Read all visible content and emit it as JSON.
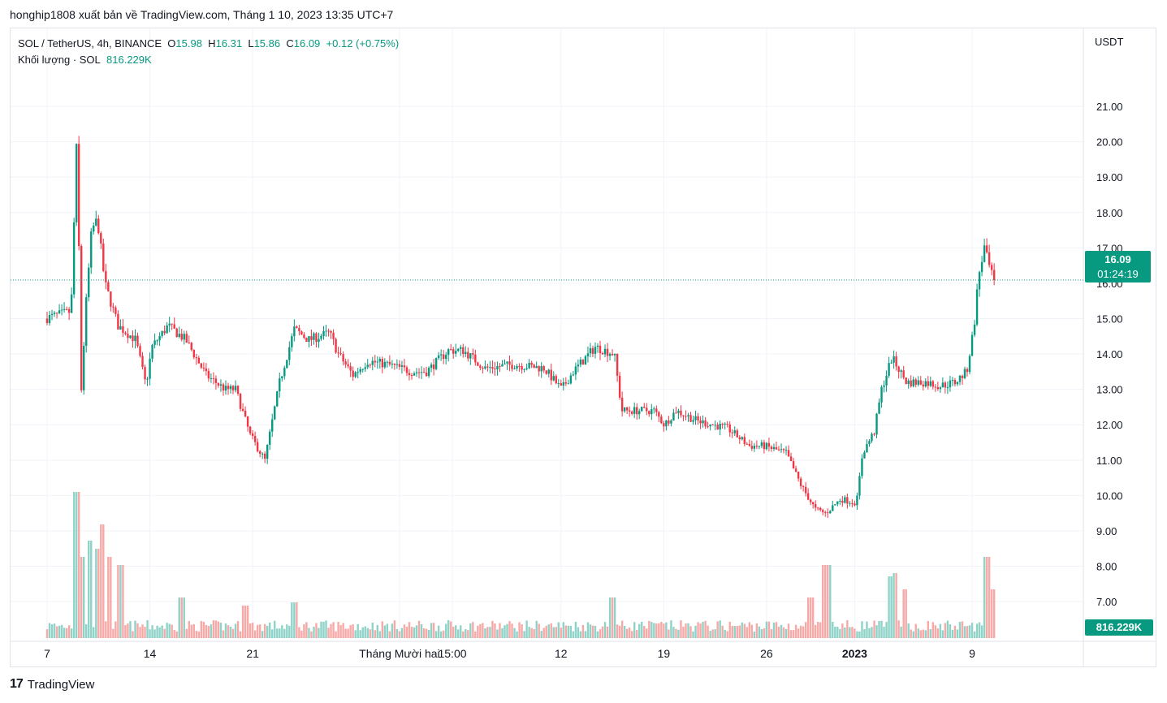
{
  "header": {
    "text": "honghip1808 xuất bản về TradingView.com, Tháng 1 10, 2023 13:35 UTC+7"
  },
  "legend": {
    "symbol": "SOL / TetherUS, 4h, BINANCE",
    "open_label": "O",
    "open": "15.98",
    "high_label": "H",
    "high": "16.31",
    "low_label": "L",
    "low": "15.86",
    "close_label": "C",
    "close": "16.09",
    "change": "+0.12 (+0.75%)",
    "volume_label": "Khối lượng · SOL",
    "volume": "816.229K"
  },
  "price_tag": {
    "price": "16.09",
    "countdown": "01:24:19"
  },
  "volume_tag": "816.229K",
  "footer": {
    "logo": "17",
    "brand": "TradingView"
  },
  "colors": {
    "up": "#089981",
    "down": "#f23645",
    "up_vol": "#8fd3c8",
    "down_vol": "#f7a9a7",
    "grid": "#f0f3fa"
  },
  "chart_data": {
    "type": "candlestick",
    "symbol": "SOL / TetherUS",
    "interval": "4h",
    "exchange": "BINANCE",
    "y_axis_unit": "USDT",
    "y_ticks": [
      "21.00",
      "20.00",
      "19.00",
      "18.00",
      "17.00",
      "16.00",
      "15.00",
      "14.00",
      "13.00",
      "12.00",
      "11.00",
      "10.00",
      "9.00",
      "8.00",
      "7.00"
    ],
    "y_tick_values": [
      21,
      20,
      19,
      18,
      17,
      16,
      15,
      14,
      13,
      12,
      11,
      10,
      9,
      8,
      7
    ],
    "x_ticks": [
      {
        "label": "7",
        "day": 0,
        "bold": false
      },
      {
        "label": "14",
        "day": 7,
        "bold": false
      },
      {
        "label": "21",
        "day": 14,
        "bold": false
      },
      {
        "label": "Tháng Mười hai",
        "day": 24,
        "bold": false
      },
      {
        "label": "15:00",
        "day": 27.6,
        "bold": false
      },
      {
        "label": "12",
        "day": 35,
        "bold": false
      },
      {
        "label": "19",
        "day": 42,
        "bold": false
      },
      {
        "label": "26",
        "day": 49,
        "bold": false
      },
      {
        "label": "2023",
        "day": 55,
        "bold": true
      },
      {
        "label": "9",
        "day": 63,
        "bold": false
      }
    ],
    "ylim": [
      6.2,
      22.4
    ],
    "candles_per_day": 6,
    "price_path": [
      [
        0,
        15.0
      ],
      [
        1.8,
        15.2
      ],
      [
        2.2,
        20.2
      ],
      [
        2.5,
        13.0
      ],
      [
        2.8,
        15.3
      ],
      [
        3.2,
        17.5
      ],
      [
        3.6,
        17.8
      ],
      [
        4.1,
        16.0
      ],
      [
        5.0,
        14.8
      ],
      [
        6.2,
        14.4
      ],
      [
        6.9,
        13.1
      ],
      [
        7.3,
        14.2
      ],
      [
        8.4,
        14.8
      ],
      [
        9.6,
        14.4
      ],
      [
        11.0,
        13.4
      ],
      [
        12.3,
        13.0
      ],
      [
        13.0,
        13.0
      ],
      [
        14.0,
        11.7
      ],
      [
        15.0,
        11.0
      ],
      [
        16.0,
        13.2
      ],
      [
        17.0,
        14.7
      ],
      [
        18.0,
        14.4
      ],
      [
        19.4,
        14.6
      ],
      [
        20.0,
        14.0
      ],
      [
        21.0,
        13.4
      ],
      [
        22.0,
        13.8
      ],
      [
        23.4,
        13.7
      ],
      [
        25.0,
        13.5
      ],
      [
        26.0,
        13.5
      ],
      [
        27.5,
        14.1
      ],
      [
        28.5,
        14.1
      ],
      [
        30.0,
        13.6
      ],
      [
        32.0,
        13.7
      ],
      [
        34.0,
        13.6
      ],
      [
        35.2,
        13.0
      ],
      [
        36.0,
        13.5
      ],
      [
        37.5,
        14.2
      ],
      [
        38.8,
        14.0
      ],
      [
        39.3,
        12.4
      ],
      [
        40.5,
        12.4
      ],
      [
        41.5,
        12.4
      ],
      [
        42.2,
        12.0
      ],
      [
        43.0,
        12.4
      ],
      [
        44.5,
        12.1
      ],
      [
        46.5,
        11.9
      ],
      [
        48.0,
        11.4
      ],
      [
        49.0,
        11.4
      ],
      [
        50.5,
        11.2
      ],
      [
        51.5,
        10.3
      ],
      [
        52.5,
        9.6
      ],
      [
        53.2,
        9.5
      ],
      [
        54.2,
        9.9
      ],
      [
        55.3,
        9.8
      ],
      [
        55.7,
        11.2
      ],
      [
        56.5,
        11.8
      ],
      [
        57.0,
        13.0
      ],
      [
        57.7,
        13.9
      ],
      [
        58.7,
        13.2
      ],
      [
        60.0,
        13.2
      ],
      [
        61.0,
        13.1
      ],
      [
        62.0,
        13.2
      ],
      [
        62.8,
        13.5
      ],
      [
        63.3,
        14.8
      ],
      [
        63.6,
        16.2
      ],
      [
        64.0,
        17.0
      ],
      [
        64.3,
        16.5
      ],
      [
        64.6,
        16.09
      ]
    ],
    "volume_spikes": [
      [
        2.0,
        0.9
      ],
      [
        2.4,
        0.5
      ],
      [
        2.9,
        0.6
      ],
      [
        3.5,
        0.55
      ],
      [
        3.8,
        0.7
      ],
      [
        4.2,
        0.5
      ],
      [
        5.0,
        0.45
      ],
      [
        9.2,
        0.25
      ],
      [
        13.5,
        0.2
      ],
      [
        16.8,
        0.22
      ],
      [
        38.5,
        0.25
      ],
      [
        52.0,
        0.25
      ],
      [
        53.0,
        0.45
      ],
      [
        53.3,
        0.45
      ],
      [
        57.5,
        0.38
      ],
      [
        57.8,
        0.4
      ],
      [
        58.4,
        0.3
      ],
      [
        64.0,
        0.5
      ],
      [
        64.4,
        0.3
      ]
    ],
    "last_price": 16.09,
    "last_volume": "816.229K"
  }
}
